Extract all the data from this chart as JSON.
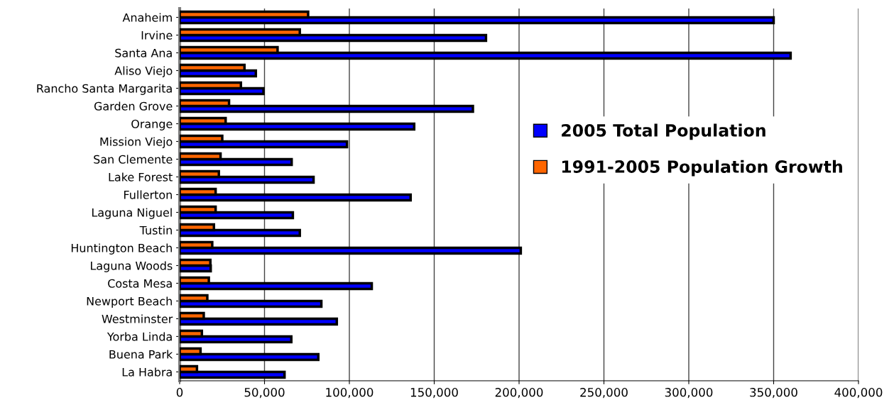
{
  "chart_data": {
    "type": "bar",
    "orientation": "horizontal",
    "categories": [
      "Anaheim",
      "Irvine",
      "Santa Ana",
      "Aliso Viejo",
      "Rancho Santa Margarita",
      "Garden Grove",
      "Orange",
      "Mission Viejo",
      "San Clemente",
      "Lake Forest",
      "Fullerton",
      "Laguna Niguel",
      "Tustin",
      "Huntington Beach",
      "Laguna Woods",
      "Costa Mesa",
      "Newport Beach",
      "Westminster",
      "Yorba Linda",
      "Buena Park",
      "La Habra"
    ],
    "series": [
      {
        "name": "2005 Total Population",
        "color": "#0000ff",
        "values": [
          350000,
          180500,
          360000,
          44900,
          49400,
          172800,
          138200,
          98600,
          66000,
          78900,
          136100,
          66700,
          70800,
          201000,
          18300,
          113200,
          83500,
          92600,
          65800,
          81700,
          61800
        ]
      },
      {
        "name": "1991-2005 Population Growth",
        "color": "#ff6600",
        "values": [
          75700,
          70800,
          57700,
          38200,
          36100,
          29100,
          27100,
          25100,
          24100,
          23100,
          21200,
          21200,
          20200,
          19200,
          18100,
          17200,
          16300,
          14200,
          13100,
          12300,
          10200
        ]
      }
    ],
    "xlim": [
      0,
      400000
    ],
    "xticks": [
      {
        "value": 0,
        "label": "0"
      },
      {
        "value": 50000,
        "label": "50,000"
      },
      {
        "value": 100000,
        "label": "100,000"
      },
      {
        "value": 150000,
        "label": "150,000"
      },
      {
        "value": 200000,
        "label": "200,000"
      },
      {
        "value": 250000,
        "label": "250,000"
      },
      {
        "value": 300000,
        "label": "300,000"
      },
      {
        "value": 350000,
        "label": "350,000"
      },
      {
        "value": 400000,
        "label": "400,000"
      }
    ],
    "grid": "x",
    "legend": "right"
  }
}
